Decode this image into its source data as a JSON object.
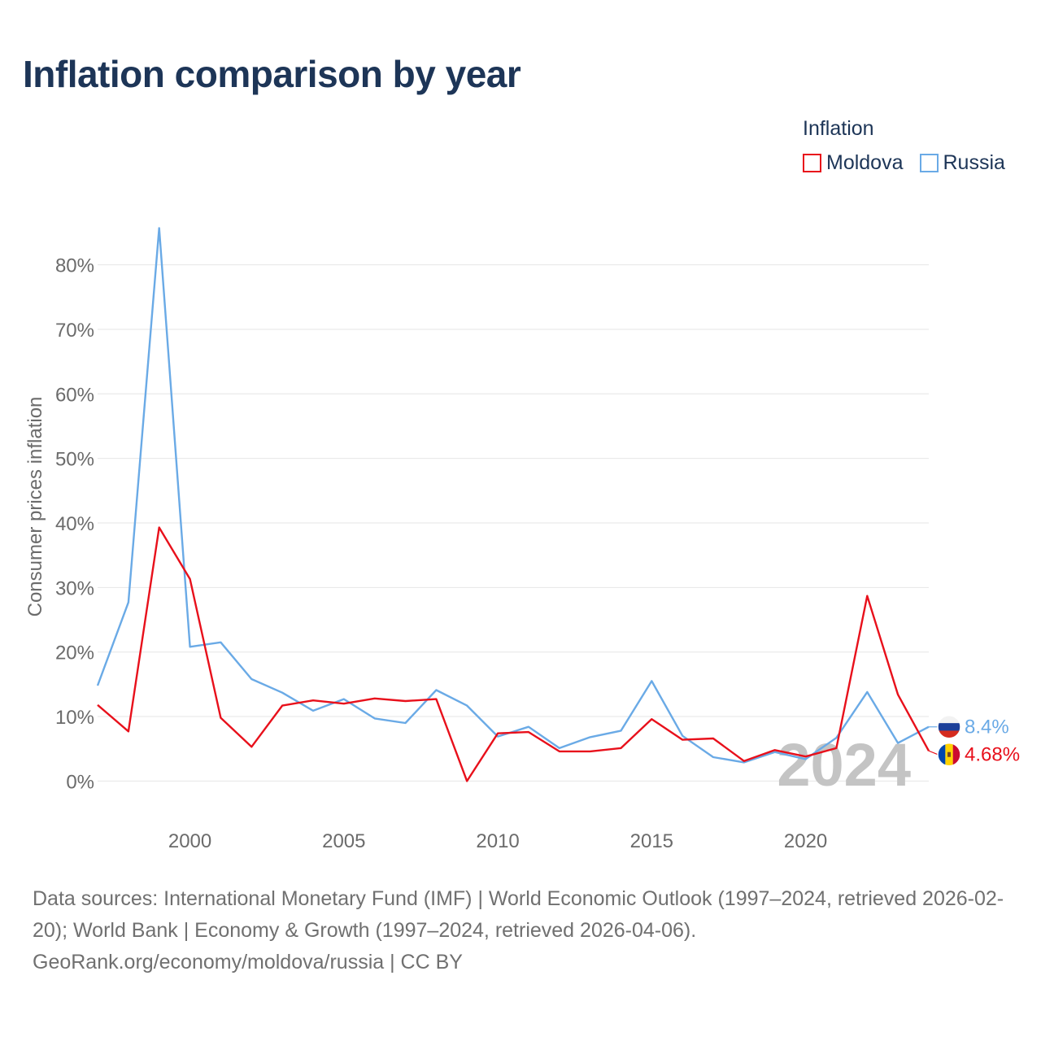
{
  "title": "Inflation comparison by year",
  "legend": {
    "title": "Inflation",
    "items": [
      {
        "label": "Moldova",
        "color": "#e8101b"
      },
      {
        "label": "Russia",
        "color": "#6aaae6"
      }
    ]
  },
  "year_watermark": "2024",
  "source": {
    "line1": "Data sources: International Monetary Fund (IMF) | World Economic Outlook (1997–2024, retrieved 2026-02-20); World Bank | Economy & Growth (1997–2024, retrieved 2026-04-06).",
    "line2": "GeoRank.org/economy/moldova/russia | CC BY"
  },
  "chart_data": {
    "type": "line",
    "title": "Inflation comparison by year",
    "xlabel": "",
    "ylabel": "Consumer prices inflation",
    "x": [
      1997,
      1998,
      1999,
      2000,
      2001,
      2002,
      2003,
      2004,
      2005,
      2006,
      2007,
      2008,
      2009,
      2010,
      2011,
      2012,
      2013,
      2014,
      2015,
      2016,
      2017,
      2018,
      2019,
      2020,
      2021,
      2022,
      2023,
      2024
    ],
    "xlim": [
      1997,
      2024
    ],
    "ylim": [
      -6,
      86
    ],
    "x_ticks": [
      2000,
      2005,
      2010,
      2015,
      2020
    ],
    "y_ticks": [
      0,
      10,
      20,
      30,
      40,
      50,
      60,
      70,
      80
    ],
    "y_tick_labels": [
      "0%",
      "10%",
      "20%",
      "30%",
      "40%",
      "50%",
      "60%",
      "70%",
      "80%"
    ],
    "grid": true,
    "series": [
      {
        "name": "Moldova",
        "color": "#e8101b",
        "values": [
          11.8,
          7.7,
          39.3,
          31.3,
          9.8,
          5.3,
          11.7,
          12.5,
          12.0,
          12.8,
          12.4,
          12.7,
          0.0,
          7.4,
          7.6,
          4.6,
          4.6,
          5.1,
          9.6,
          6.4,
          6.6,
          3.1,
          4.8,
          3.8,
          5.1,
          28.7,
          13.4,
          4.68
        ],
        "end_label": "4.68%"
      },
      {
        "name": "Russia",
        "color": "#6aaae6",
        "values": [
          14.8,
          27.7,
          85.7,
          20.8,
          21.5,
          15.8,
          13.7,
          10.9,
          12.7,
          9.7,
          9.0,
          14.1,
          11.7,
          6.9,
          8.4,
          5.1,
          6.8,
          7.8,
          15.5,
          7.0,
          3.7,
          2.9,
          4.5,
          3.4,
          6.7,
          13.8,
          5.9,
          8.4
        ],
        "end_label": "8.4%"
      }
    ]
  }
}
